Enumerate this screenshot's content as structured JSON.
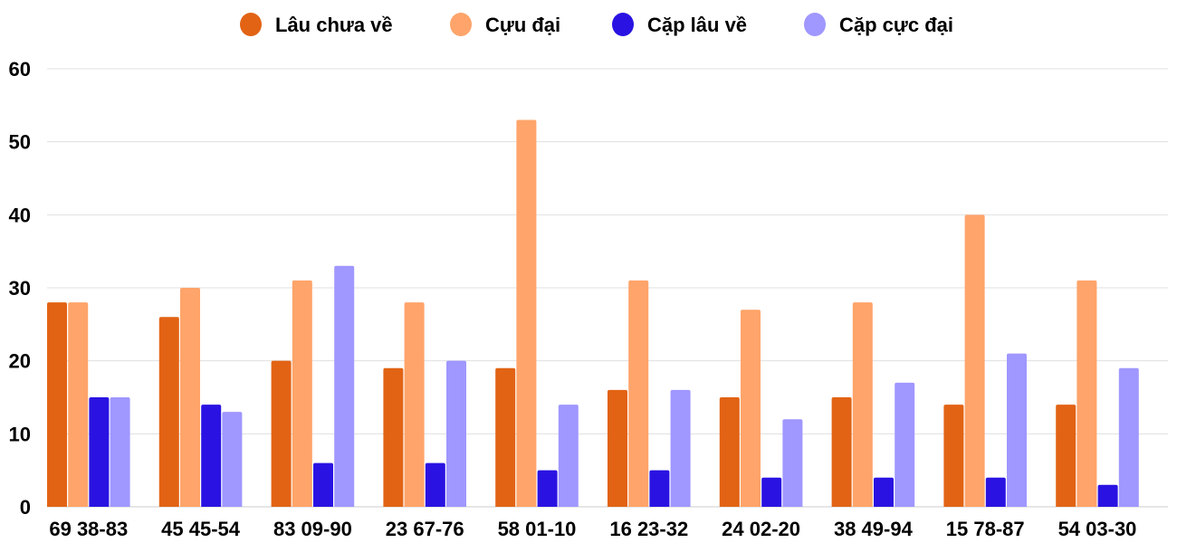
{
  "chart_data": {
    "type": "bar",
    "title": "",
    "xlabel": "",
    "ylabel": "",
    "ylim": [
      0,
      60
    ],
    "yticks": [
      0,
      10,
      20,
      30,
      40,
      50,
      60
    ],
    "grid": true,
    "legend_position": "top",
    "categories": [
      "69 38-83",
      "45 45-54",
      "83 09-90",
      "23 67-76",
      "58 01-10",
      "16 23-32",
      "24 02-20",
      "38 49-94",
      "15 78-87",
      "54 03-30"
    ],
    "series": [
      {
        "name": "Lâu chưa về",
        "color": "#e26314",
        "values": [
          28,
          26,
          20,
          19,
          19,
          16,
          15,
          15,
          14,
          14
        ]
      },
      {
        "name": "Cựu đại",
        "color": "#ffa46a",
        "values": [
          28,
          30,
          31,
          28,
          53,
          31,
          27,
          28,
          40,
          31
        ]
      },
      {
        "name": "Cặp lâu về",
        "color": "#2a13e2",
        "values": [
          15,
          14,
          6,
          6,
          5,
          5,
          4,
          4,
          4,
          3
        ]
      },
      {
        "name": "Cặp cực đại",
        "color": "#a097ff",
        "values": [
          15,
          13,
          33,
          20,
          14,
          16,
          12,
          17,
          21,
          19
        ]
      }
    ]
  }
}
